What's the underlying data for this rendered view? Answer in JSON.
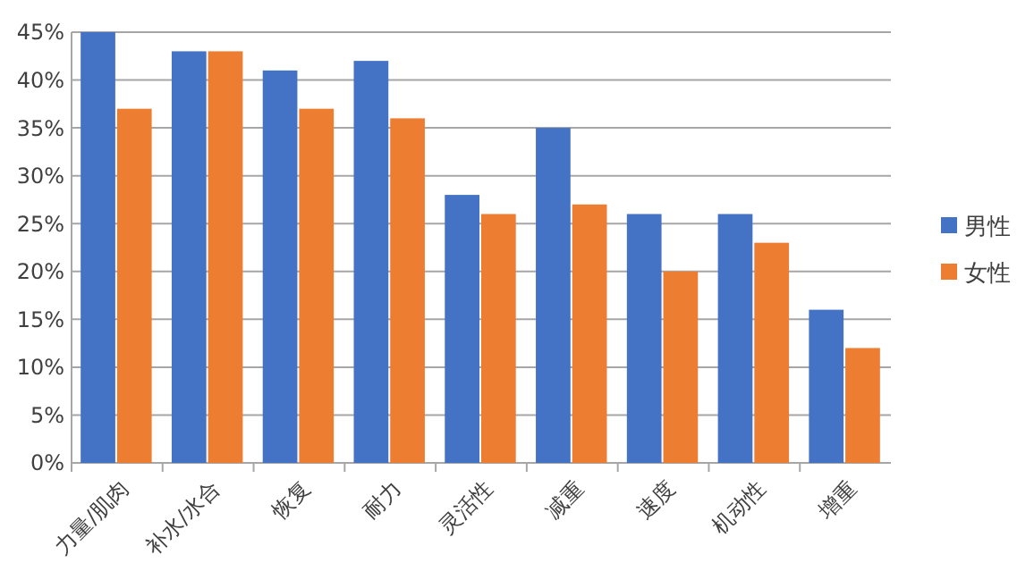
{
  "chart_data": {
    "type": "bar",
    "categories": [
      "力量/肌肉",
      "补水/水合",
      "恢复",
      "耐力",
      "灵活性",
      "减重",
      "速度",
      "机动性",
      "增重"
    ],
    "series": [
      {
        "name": "男性",
        "color": "#4472c4",
        "values": [
          45,
          43,
          41,
          42,
          28,
          35,
          26,
          26,
          16
        ]
      },
      {
        "name": "女性",
        "color": "#ed7d31",
        "values": [
          37,
          43,
          37,
          36,
          26,
          27,
          20,
          23,
          12
        ]
      }
    ],
    "ylim": [
      0,
      45
    ],
    "yticks": [
      {
        "value": 0,
        "label": "0%"
      },
      {
        "value": 5,
        "label": "5%"
      },
      {
        "value": 10,
        "label": "10%"
      },
      {
        "value": 15,
        "label": "15%"
      },
      {
        "value": 20,
        "label": "20%"
      },
      {
        "value": 25,
        "label": "25%"
      },
      {
        "value": 30,
        "label": "30%"
      },
      {
        "value": 35,
        "label": "35%"
      },
      {
        "value": 40,
        "label": "40%"
      },
      {
        "value": 45,
        "label": "45%"
      }
    ],
    "grid": "y",
    "legend": "right"
  }
}
